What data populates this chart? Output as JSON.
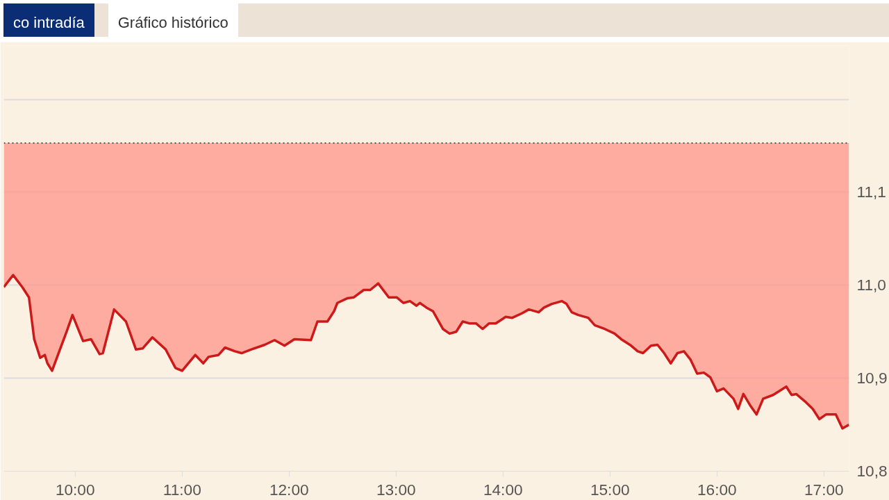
{
  "chart_data": {
    "type": "line",
    "annotations": [
      "co intradía",
      "Gráfico histórico"
    ],
    "x": [
      9.333,
      9.42,
      9.506,
      9.568,
      9.617,
      9.673,
      9.716,
      9.741,
      9.784,
      9.858,
      9.92,
      9.975,
      10.074,
      10.148,
      10.228,
      10.259,
      10.364,
      10.475,
      10.568,
      10.63,
      10.722,
      10.846,
      10.938,
      11.0,
      11.123,
      11.198,
      11.247,
      11.34,
      11.401,
      11.494,
      11.556,
      11.648,
      11.772,
      11.864,
      11.957,
      12.049,
      12.204,
      12.265,
      12.358,
      12.42,
      12.451,
      12.543,
      12.605,
      12.698,
      12.759,
      12.833,
      12.932,
      13.006,
      13.068,
      13.13,
      13.191,
      13.222,
      13.284,
      13.346,
      13.438,
      13.5,
      13.562,
      13.623,
      13.685,
      13.747,
      13.809,
      13.87,
      13.932,
      14.025,
      14.086,
      14.179,
      14.241,
      14.333,
      14.383,
      14.457,
      14.549,
      14.593,
      14.642,
      14.704,
      14.796,
      14.858,
      14.951,
      15.043,
      15.105,
      15.198,
      15.259,
      15.309,
      15.383,
      15.444,
      15.506,
      15.568,
      15.63,
      15.691,
      15.753,
      15.815,
      15.877,
      15.938,
      16.0,
      16.062,
      16.154,
      16.198,
      16.247,
      16.309,
      16.37,
      16.432,
      16.525,
      16.648,
      16.698,
      16.741,
      16.833,
      16.895,
      16.957,
      17.019,
      17.111,
      17.173,
      17.235
    ],
    "series": [
      {
        "color": "#cc1a1a",
        "upper": [
          11.153,
          11.153,
          11.153,
          11.153,
          11.153,
          11.153,
          11.153,
          11.153,
          11.153,
          11.153,
          11.153,
          11.153,
          11.153,
          11.153,
          11.153,
          11.153,
          11.153,
          11.153,
          11.153,
          11.153,
          11.153,
          11.153,
          11.153,
          11.153,
          11.153,
          11.153,
          11.153,
          11.153,
          11.153,
          11.153,
          11.153,
          11.153,
          11.153,
          11.153,
          11.153,
          11.153,
          11.153,
          11.153,
          11.153,
          11.153,
          11.153,
          11.153,
          11.153,
          11.153,
          11.153,
          11.153,
          11.153,
          11.153,
          11.153,
          11.153,
          11.153,
          11.153,
          11.153,
          11.153,
          11.153,
          11.153,
          11.153,
          11.153,
          11.153,
          11.153,
          11.153,
          11.153,
          11.153,
          11.153,
          11.153,
          11.153,
          11.153,
          11.153,
          11.153,
          11.153,
          11.153,
          11.153,
          11.153,
          11.153,
          11.153,
          11.153,
          11.153,
          11.153,
          11.153,
          11.153,
          11.153,
          11.153,
          11.153,
          11.153,
          11.153,
          11.153,
          11.153,
          11.153,
          11.153,
          11.153,
          11.153,
          11.153,
          11.153,
          11.153,
          11.153,
          11.153,
          11.153,
          11.153,
          11.153,
          11.153,
          11.153,
          11.153,
          11.153,
          11.153,
          11.153,
          11.153,
          11.153,
          11.153,
          11.153,
          11.153,
          11.153
        ],
        "lower": [
          10.998,
          11.011,
          10.998,
          10.987,
          10.942,
          10.922,
          10.925,
          10.916,
          10.908,
          10.931,
          10.95,
          10.968,
          10.94,
          10.942,
          10.926,
          10.927,
          10.974,
          10.961,
          10.931,
          10.932,
          10.944,
          10.931,
          10.911,
          10.908,
          10.925,
          10.916,
          10.923,
          10.925,
          10.933,
          10.929,
          10.927,
          10.931,
          10.936,
          10.941,
          10.935,
          10.942,
          10.941,
          10.961,
          10.961,
          10.972,
          10.981,
          10.986,
          10.987,
          10.995,
          10.995,
          11.002,
          10.987,
          10.987,
          10.981,
          10.983,
          10.978,
          10.981,
          10.976,
          10.972,
          10.953,
          10.948,
          10.95,
          10.961,
          10.959,
          10.959,
          10.953,
          10.959,
          10.959,
          10.966,
          10.965,
          10.97,
          10.974,
          10.971,
          10.976,
          10.98,
          10.983,
          10.98,
          10.971,
          10.968,
          10.965,
          10.957,
          10.953,
          10.948,
          10.942,
          10.935,
          10.929,
          10.927,
          10.935,
          10.936,
          10.927,
          10.916,
          10.927,
          10.929,
          10.92,
          10.905,
          10.906,
          10.901,
          10.886,
          10.889,
          10.878,
          10.867,
          10.883,
          10.871,
          10.861,
          10.878,
          10.882,
          10.891,
          10.882,
          10.883,
          10.874,
          10.867,
          10.856,
          10.861,
          10.861,
          10.846,
          10.85
        ],
        "values": [
          10.998,
          11.011,
          10.998,
          10.987,
          10.942,
          10.922,
          10.925,
          10.916,
          10.908,
          10.931,
          10.95,
          10.968,
          10.94,
          10.942,
          10.926,
          10.927,
          10.974,
          10.961,
          10.931,
          10.932,
          10.944,
          10.931,
          10.911,
          10.908,
          10.925,
          10.916,
          10.923,
          10.925,
          10.933,
          10.929,
          10.927,
          10.931,
          10.936,
          10.941,
          10.935,
          10.942,
          10.941,
          10.961,
          10.961,
          10.972,
          10.981,
          10.986,
          10.987,
          10.995,
          10.995,
          11.002,
          10.987,
          10.987,
          10.981,
          10.983,
          10.978,
          10.981,
          10.976,
          10.972,
          10.953,
          10.948,
          10.95,
          10.961,
          10.959,
          10.959,
          10.953,
          10.959,
          10.959,
          10.966,
          10.965,
          10.97,
          10.974,
          10.971,
          10.976,
          10.98,
          10.983,
          10.98,
          10.971,
          10.968,
          10.965,
          10.957,
          10.953,
          10.948,
          10.942,
          10.935,
          10.929,
          10.927,
          10.935,
          10.936,
          10.927,
          10.916,
          10.927,
          10.929,
          10.92,
          10.905,
          10.906,
          10.901,
          10.886,
          10.889,
          10.878,
          10.867,
          10.883,
          10.871,
          10.861,
          10.878,
          10.882,
          10.891,
          10.882,
          10.883,
          10.874,
          10.867,
          10.856,
          10.861,
          10.861,
          10.846,
          10.85
        ]
      }
    ],
    "ref_lines": [
      {
        "axis": "y",
        "value": 11.153,
        "color": "#555555",
        "line_style": "dotted"
      }
    ],
    "xlim": [
      9.333,
      17.235
    ],
    "ylim": [
      10.8,
      11.258
    ],
    "xticks": [
      {
        "value": 10,
        "label": "10:00"
      },
      {
        "value": 11,
        "label": "11:00"
      },
      {
        "value": 12,
        "label": "12:00"
      },
      {
        "value": 13,
        "label": "13:00"
      },
      {
        "value": 14,
        "label": "14:00"
      },
      {
        "value": 15,
        "label": "15:00"
      },
      {
        "value": 16,
        "label": "16:00"
      },
      {
        "value": 17,
        "label": "17:00"
      }
    ],
    "yticks": [
      {
        "value": 10.8,
        "label": "10,8"
      },
      {
        "value": 10.9,
        "label": "10,9"
      },
      {
        "value": 11.0,
        "label": "11,0"
      },
      {
        "value": 11.1,
        "label": "11,1"
      },
      {
        "value": 11.2,
        "label": null
      }
    ],
    "grid": "y"
  }
}
